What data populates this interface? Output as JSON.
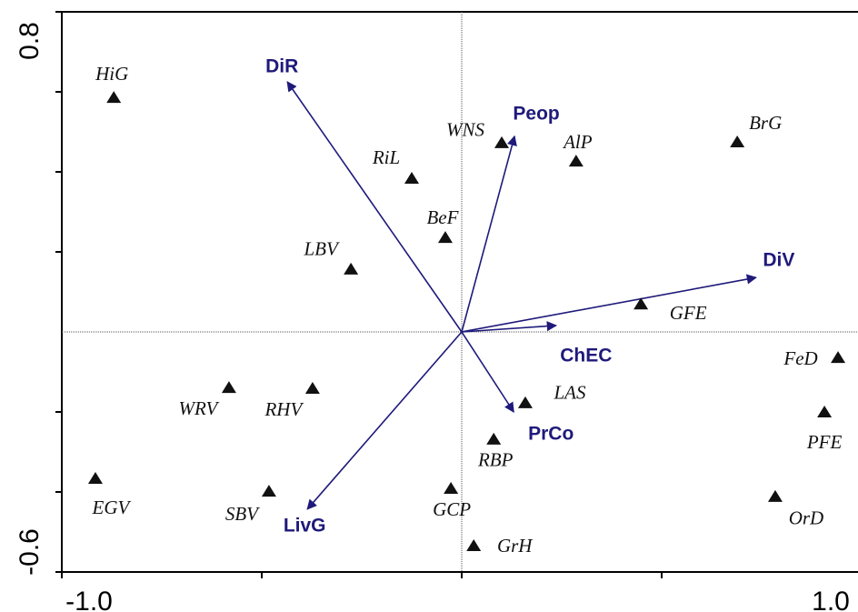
{
  "chart_data": {
    "type": "scatter",
    "xlim": [
      -1.0,
      1.0
    ],
    "ylim": [
      -0.6,
      0.8
    ],
    "xticks": [
      {
        "value": -1.0,
        "label": "-1.0"
      },
      {
        "value": 1.0,
        "label": "1.0"
      }
    ],
    "xminor_ticks": [
      -0.5,
      0,
      0.5
    ],
    "yticks": [
      0.8,
      -0.6
    ],
    "yminor_ticks": [
      0.6,
      0.4,
      0.2,
      -0.2,
      -0.4
    ],
    "zero_lines": true,
    "markers": {
      "color": "#111111",
      "labels": [
        "HiG",
        "WNS",
        "AlP",
        "BrG",
        "RiL",
        "BeF",
        "LBV",
        "GFE",
        "FeD",
        "WRV",
        "RHV",
        "LAS",
        "PFE",
        "RBP",
        "EGV",
        "SBV",
        "GCP",
        "OrD",
        "GrH"
      ],
      "x": [
        -0.87,
        0.1,
        0.286,
        0.689,
        -0.125,
        -0.041,
        -0.277,
        0.448,
        0.941,
        -0.582,
        -0.373,
        0.159,
        0.907,
        0.08,
        -0.916,
        -0.482,
        -0.027,
        0.784,
        0.03
      ],
      "y": [
        0.586,
        0.473,
        0.427,
        0.475,
        0.384,
        0.236,
        0.157,
        0.07,
        -0.064,
        -0.139,
        -0.141,
        -0.177,
        -0.2,
        -0.268,
        -0.366,
        -0.398,
        -0.391,
        -0.411,
        -0.534
      ]
    },
    "vectors": {
      "color": "#1f1a7a",
      "labels": [
        "DiR",
        "Peop",
        "DiV",
        "ChEC",
        "PrCo",
        "LivG"
      ],
      "x": [
        -0.436,
        0.132,
        0.736,
        0.236,
        0.13,
        -0.386
      ],
      "y": [
        0.625,
        0.489,
        0.136,
        0.016,
        -0.2,
        -0.443
      ]
    }
  }
}
